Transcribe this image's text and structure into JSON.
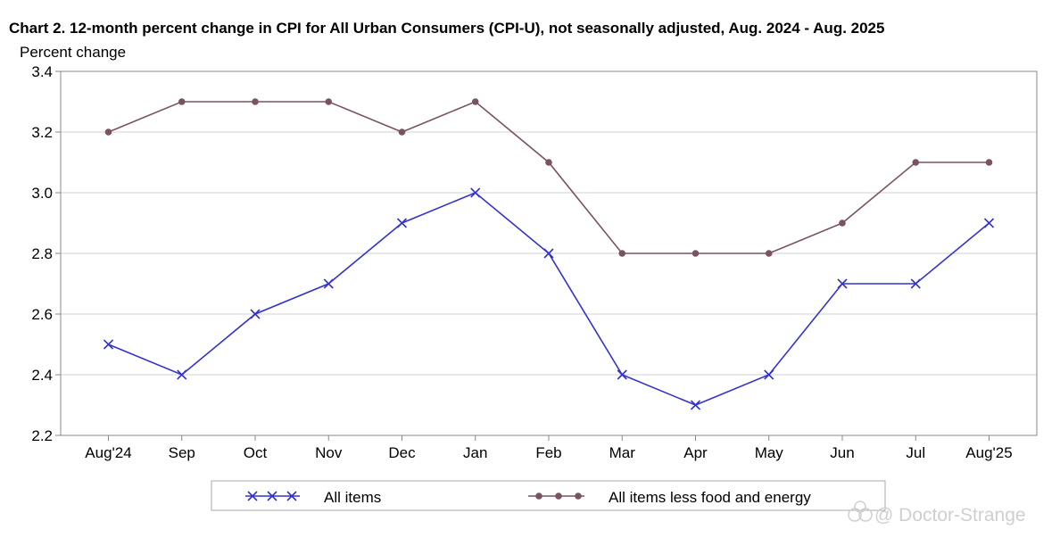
{
  "chart_data": {
    "type": "line",
    "title": "Chart 2. 12-month percent change in CPI for All Urban Consumers (CPI-U), not seasonally adjusted, Aug. 2024 - Aug. 2025",
    "ylabel": "Percent change",
    "xlabel": "",
    "categories": [
      "Aug'24",
      "Sep",
      "Oct",
      "Nov",
      "Dec",
      "Jan",
      "Feb",
      "Mar",
      "Apr",
      "May",
      "Jun",
      "Jul",
      "Aug'25"
    ],
    "ylim": [
      2.2,
      3.4
    ],
    "yticks": [
      "2.2",
      "2.4",
      "2.6",
      "2.8",
      "3.0",
      "3.2",
      "3.4"
    ],
    "grid": "horizontal",
    "legend_position": "bottom",
    "series": [
      {
        "name": "All items",
        "color": "#3333cc",
        "marker": "x",
        "values": [
          2.5,
          2.4,
          2.6,
          2.7,
          2.9,
          3.0,
          2.8,
          2.4,
          2.3,
          2.4,
          2.7,
          2.7,
          2.9
        ]
      },
      {
        "name": "All items less food and energy",
        "color": "#7a545c",
        "marker": "dot",
        "values": [
          3.2,
          3.3,
          3.3,
          3.3,
          3.2,
          3.3,
          3.1,
          2.8,
          2.8,
          2.8,
          2.9,
          3.1,
          3.1
        ]
      }
    ]
  },
  "watermark": {
    "text": "@ Doctor-Strange",
    "icon": "weibo-watermark-icon"
  }
}
